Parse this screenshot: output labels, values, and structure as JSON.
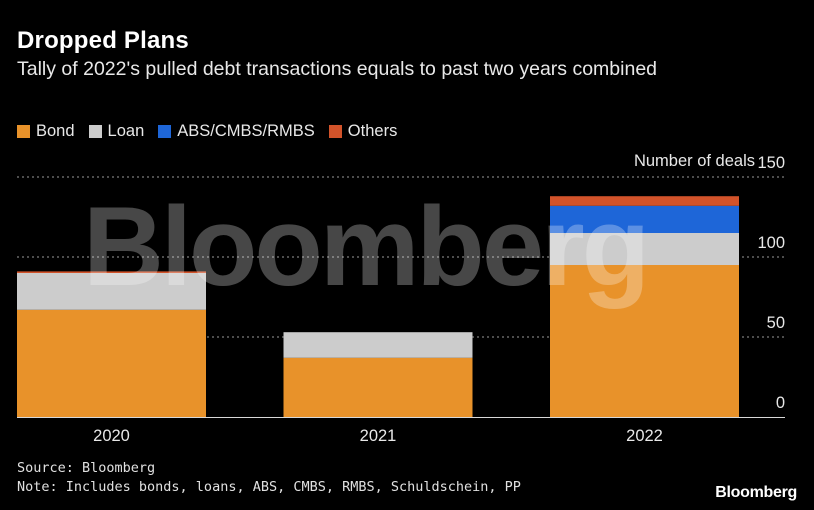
{
  "header": {
    "title": "Dropped Plans",
    "subtitle": "Tally of 2022's pulled debt transactions equals to past two years combined"
  },
  "legend": {
    "items": [
      {
        "label": "Bond",
        "color": "#E8922A"
      },
      {
        "label": "Loan",
        "color": "#CCCCCC"
      },
      {
        "label": "ABS/CMBS/RMBS",
        "color": "#1E66D8"
      },
      {
        "label": "Others",
        "color": "#D2532A"
      }
    ]
  },
  "chart_data": {
    "type": "bar",
    "stacked": true,
    "categories": [
      "2020",
      "2021",
      "2022"
    ],
    "series": [
      {
        "name": "Bond",
        "color": "#E8922A",
        "values": [
          67,
          37,
          95
        ]
      },
      {
        "name": "Loan",
        "color": "#CCCCCC",
        "values": [
          23,
          16,
          20
        ]
      },
      {
        "name": "ABS/CMBS/RMBS",
        "color": "#1E66D8",
        "values": [
          0,
          0,
          17
        ]
      },
      {
        "name": "Others",
        "color": "#D2532A",
        "values": [
          1,
          0,
          6
        ]
      }
    ],
    "ylabel": "Number of deals",
    "ylim": [
      0,
      150
    ],
    "yticks": [
      0,
      50,
      100,
      150
    ],
    "ytick_labels": [
      "0",
      "50",
      "100",
      "150"
    ],
    "grid": true,
    "y_axis_position": "right"
  },
  "footer": {
    "source": "Source: Bloomberg",
    "note": "Note: Includes bonds, loans, ABS, CMBS, RMBS, Schuldschein, PP"
  },
  "watermark": "Bloomberg",
  "brand": "Bloomberg"
}
